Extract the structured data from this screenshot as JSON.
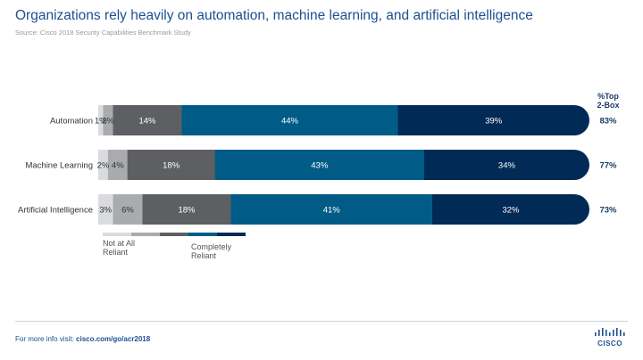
{
  "header": {
    "title": "Organizations rely heavily on automation, machine learning, and artificial intelligence",
    "source": "Source: Cisco 2018 Security Capabilities Benchmark Study"
  },
  "footer": {
    "prefix": "For more info visit: ",
    "link": "cisco.com/go/acr2018",
    "logo_text": "CISCO"
  },
  "chart_data": {
    "type": "bar",
    "orientation": "horizontal",
    "stacked": true,
    "categories": [
      "Automation",
      "Machine Learning",
      "Artificial Intelligence"
    ],
    "series": [
      {
        "values": [
          1,
          2,
          3
        ],
        "color": "#d9dbde"
      },
      {
        "values": [
          2,
          4,
          6
        ],
        "color": "#a9abae"
      },
      {
        "values": [
          14,
          18,
          18
        ],
        "color": "#5d5f62"
      },
      {
        "values": [
          44,
          43,
          41
        ],
        "color": "#005c87"
      },
      {
        "values": [
          39,
          34,
          32
        ],
        "color": "#012a57"
      }
    ],
    "value_suffix": "%",
    "top2_header": [
      "%Top",
      "2-Box"
    ],
    "top2_values": [
      "83%",
      "77%",
      "73%"
    ],
    "legend": {
      "low_label": [
        "Not at All",
        "Reliant"
      ],
      "high_label": [
        "Completely",
        "Reliant"
      ]
    },
    "colors": {
      "label_dark": "#333333",
      "label_light": "#ffffff",
      "top2": "#1d3b66"
    }
  }
}
